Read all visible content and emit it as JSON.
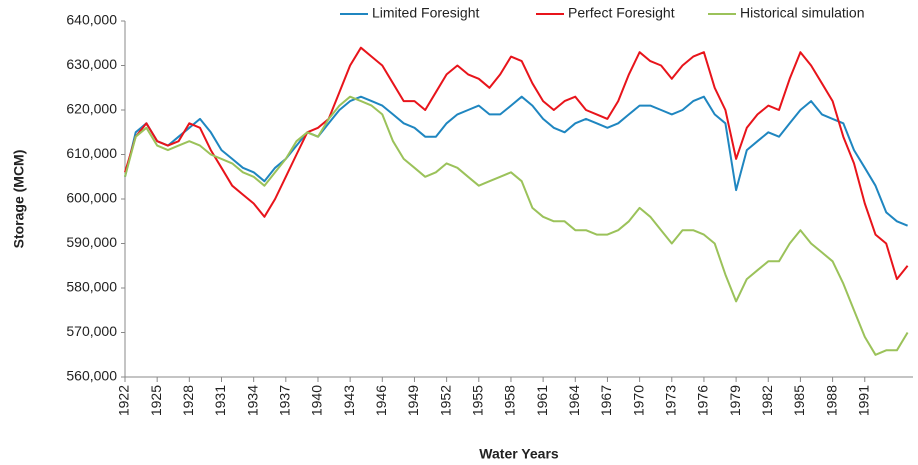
{
  "chart_data": {
    "type": "line",
    "x_label": "Water Years",
    "y_label": "Storage (MCM)",
    "x": [
      1922,
      1923,
      1924,
      1925,
      1926,
      1927,
      1928,
      1929,
      1930,
      1931,
      1932,
      1933,
      1934,
      1935,
      1936,
      1937,
      1938,
      1939,
      1940,
      1941,
      1942,
      1943,
      1944,
      1945,
      1946,
      1947,
      1948,
      1949,
      1950,
      1951,
      1952,
      1953,
      1954,
      1955,
      1956,
      1957,
      1958,
      1959,
      1960,
      1961,
      1962,
      1963,
      1964,
      1965,
      1966,
      1967,
      1968,
      1969,
      1970,
      1971,
      1972,
      1973,
      1974,
      1975,
      1976,
      1977,
      1978,
      1979,
      1980,
      1981,
      1982,
      1983,
      1984,
      1985,
      1986,
      1987,
      1988,
      1989,
      1990,
      1991,
      1992,
      1993,
      1994,
      1995
    ],
    "series": [
      {
        "name": "Limited Foresight",
        "color": "#1f86c0",
        "values": [
          605000,
          615000,
          617000,
          613000,
          612000,
          614000,
          616000,
          618000,
          615000,
          611000,
          609000,
          607000,
          606000,
          604000,
          607000,
          609000,
          612000,
          615000,
          614000,
          617000,
          620000,
          622000,
          623000,
          622000,
          621000,
          619000,
          617000,
          616000,
          614000,
          614000,
          617000,
          619000,
          620000,
          621000,
          619000,
          619000,
          621000,
          623000,
          621000,
          618000,
          616000,
          615000,
          617000,
          618000,
          617000,
          616000,
          617000,
          619000,
          621000,
          621000,
          620000,
          619000,
          620000,
          622000,
          623000,
          619000,
          617000,
          602000,
          611000,
          613000,
          615000,
          614000,
          617000,
          620000,
          622000,
          619000,
          618000,
          617000,
          611000,
          607000,
          603000,
          597000,
          595000,
          594000
        ]
      },
      {
        "name": "Perfect Foresight",
        "color": "#e8141b",
        "values": [
          606000,
          614000,
          617000,
          613000,
          612000,
          613000,
          617000,
          616000,
          611000,
          607000,
          603000,
          601000,
          599000,
          596000,
          600000,
          605000,
          610000,
          615000,
          616000,
          618000,
          624000,
          630000,
          634000,
          632000,
          630000,
          626000,
          622000,
          622000,
          620000,
          624000,
          628000,
          630000,
          628000,
          627000,
          625000,
          628000,
          632000,
          631000,
          626000,
          622000,
          620000,
          622000,
          623000,
          620000,
          619000,
          618000,
          622000,
          628000,
          633000,
          631000,
          630000,
          627000,
          630000,
          632000,
          633000,
          625000,
          620000,
          609000,
          616000,
          619000,
          621000,
          620000,
          627000,
          633000,
          630000,
          626000,
          622000,
          614000,
          608000,
          599000,
          592000,
          590000,
          582000,
          585000
        ]
      },
      {
        "name": "Historical simulation",
        "color": "#9bc25a",
        "values": [
          605000,
          614000,
          616000,
          612000,
          611000,
          612000,
          613000,
          612000,
          610000,
          609000,
          608000,
          606000,
          605000,
          603000,
          606000,
          609000,
          613000,
          615000,
          614000,
          618000,
          621000,
          623000,
          622000,
          621000,
          619000,
          613000,
          609000,
          607000,
          605000,
          606000,
          608000,
          607000,
          605000,
          603000,
          604000,
          605000,
          606000,
          604000,
          598000,
          596000,
          595000,
          595000,
          593000,
          593000,
          592000,
          592000,
          593000,
          595000,
          598000,
          596000,
          593000,
          590000,
          593000,
          593000,
          592000,
          590000,
          583000,
          577000,
          582000,
          584000,
          586000,
          586000,
          590000,
          593000,
          590000,
          588000,
          586000,
          581000,
          575000,
          569000,
          565000,
          566000,
          566000,
          570000
        ]
      }
    ],
    "xlim": [
      1922,
      1995.5
    ],
    "xticks": [
      1922,
      1925,
      1928,
      1931,
      1934,
      1937,
      1940,
      1943,
      1946,
      1949,
      1952,
      1955,
      1958,
      1961,
      1964,
      1967,
      1970,
      1973,
      1976,
      1979,
      1982,
      1985,
      1988,
      1991
    ],
    "ylim": [
      560000,
      640000
    ],
    "yticks": [
      {
        "value": 560000,
        "label": "560,000"
      },
      {
        "value": 570000,
        "label": "570,000"
      },
      {
        "value": 580000,
        "label": "580,000"
      },
      {
        "value": 590000,
        "label": "590,000"
      },
      {
        "value": 600000,
        "label": "600,000"
      },
      {
        "value": 610000,
        "label": "610,000"
      },
      {
        "value": 620000,
        "label": "620,000"
      },
      {
        "value": 630000,
        "label": "630,000"
      },
      {
        "value": 640000,
        "label": "640,000"
      }
    ],
    "grid": false,
    "legend": "top"
  }
}
